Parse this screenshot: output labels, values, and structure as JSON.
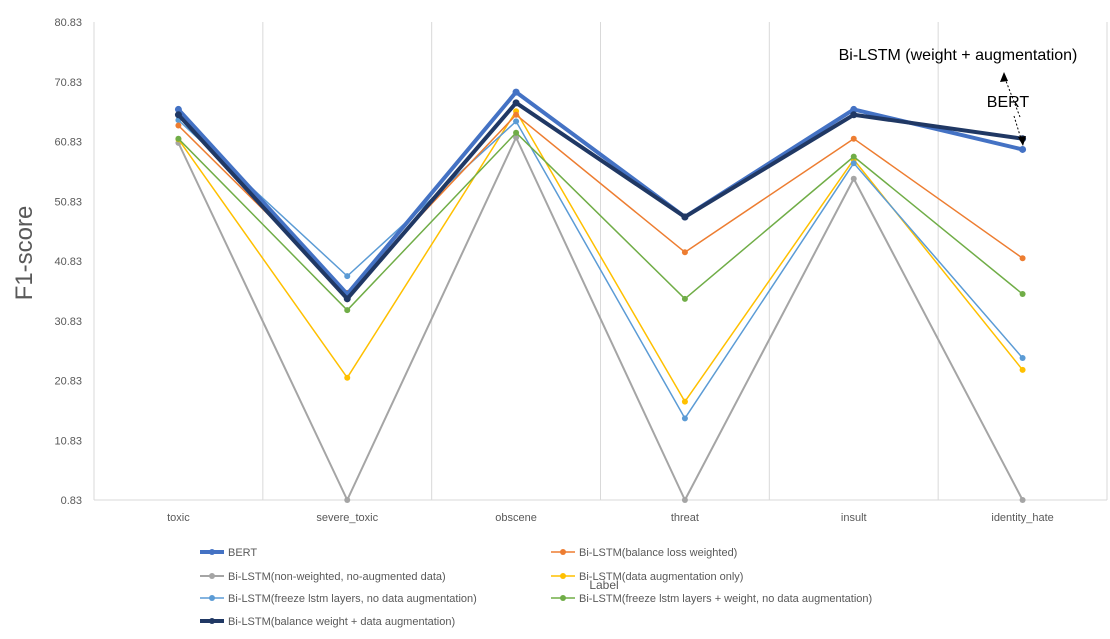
{
  "chart_data": {
    "type": "line",
    "title": "",
    "xlabel": "Label",
    "ylabel": "F1-score",
    "categories": [
      "toxic",
      "severe_toxic",
      "obscene",
      "threat",
      "insult",
      "identity_hate"
    ],
    "y_ticks": [
      "0.83",
      "10.83",
      "20.83",
      "30.83",
      "40.83",
      "50.83",
      "60.83",
      "70.83",
      "80.83"
    ],
    "ylim": [
      0.83,
      80.83
    ],
    "grid": "vertical",
    "legend_position": "bottom",
    "series": [
      {
        "name": "BERT",
        "color": "#4472C4",
        "width": 4,
        "values": [
          66.2,
          35.3,
          69.1,
          48.2,
          66.2,
          59.5
        ]
      },
      {
        "name": "Bi-LSTM(balance loss weighted)",
        "color": "#ED7D31",
        "width": 1.5,
        "values": [
          63.5,
          35.5,
          65.3,
          42.3,
          61.3,
          41.3
        ]
      },
      {
        "name": "Bi-LSTM(non-weighted, no-augmented data)",
        "color": "#A5A5A5",
        "width": 2,
        "values": [
          60.6,
          0.83,
          61.5,
          0.83,
          54.6,
          0.83
        ]
      },
      {
        "name": "Bi-LSTM(data augmentation only)",
        "color": "#FFC000",
        "width": 1.5,
        "values": [
          61.2,
          21.3,
          65.9,
          17.3,
          57.8,
          22.6
        ]
      },
      {
        "name": "Bi-LSTM(freeze lstm layers, no data augmentation)",
        "color": "#5B9BD5",
        "width": 1.5,
        "values": [
          64.4,
          38.3,
          64.2,
          14.5,
          57.2,
          24.6
        ]
      },
      {
        "name": "Bi-LSTM(freeze lstm layers + weight, no data augmentation)",
        "color": "#70AD47",
        "width": 1.5,
        "values": [
          61.3,
          32.6,
          62.3,
          34.5,
          58.3,
          35.3
        ]
      },
      {
        "name": "Bi-LSTM(balance weight + data augmentation)",
        "color": "#203864",
        "width": 4,
        "values": [
          65.3,
          34.5,
          67.3,
          48.2,
          65.3,
          61.3
        ]
      }
    ],
    "annotations": [
      {
        "text": "Bi-LSTM (weight + augmentation)",
        "target_series": 6,
        "target_category": "identity_hate"
      },
      {
        "text": "BERT",
        "target_series": 0,
        "target_category": "identity_hate"
      }
    ]
  }
}
